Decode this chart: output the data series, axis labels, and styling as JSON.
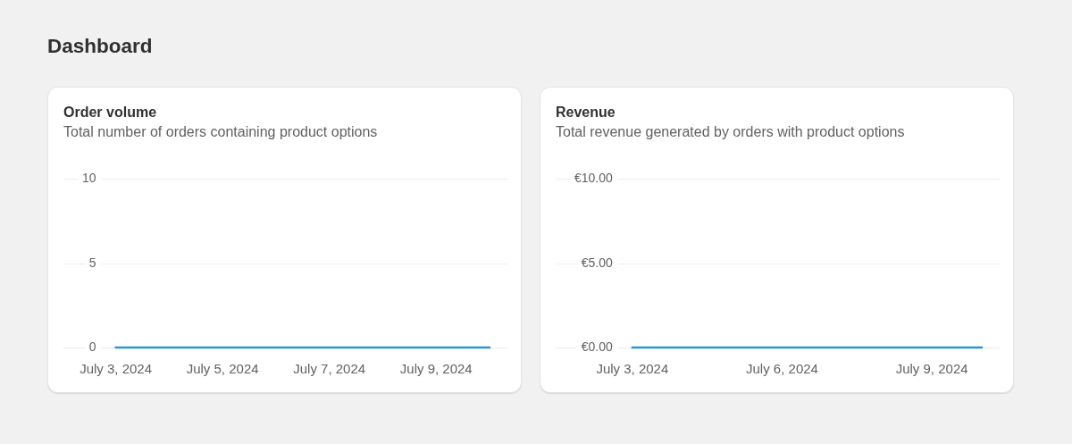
{
  "chart_data": [
    {
      "type": "line",
      "title": "Order volume",
      "subtitle": "Total number of orders containing product options",
      "annotations": [
        "Dashboard"
      ],
      "categories": [
        "July 3, 2024",
        null,
        "July 5, 2024",
        null,
        "July 7, 2024",
        null,
        "July 9, 2024",
        null
      ],
      "values": [
        0,
        0,
        0,
        0,
        0,
        0,
        0,
        0
      ],
      "color": "#2a96d2",
      "ylim": [
        0,
        10
      ],
      "yticks": [
        0,
        5,
        10
      ],
      "grid": "y"
    },
    {
      "type": "line",
      "title": "Revenue",
      "subtitle": "Total revenue generated by orders with product options",
      "categories": [
        "July 3, 2024",
        null,
        null,
        "July 6, 2024",
        null,
        null,
        "July 9, 2024",
        null
      ],
      "values": [
        0,
        0,
        0,
        0,
        0,
        0,
        0,
        0
      ],
      "color": "#2a96d2",
      "ylim": [
        0,
        10
      ],
      "yticks": [
        {
          "value": 0,
          "label": "€0.00"
        },
        {
          "value": 5,
          "label": "€5.00"
        },
        {
          "value": 10,
          "label": "€10.00"
        }
      ],
      "grid": "y"
    }
  ]
}
